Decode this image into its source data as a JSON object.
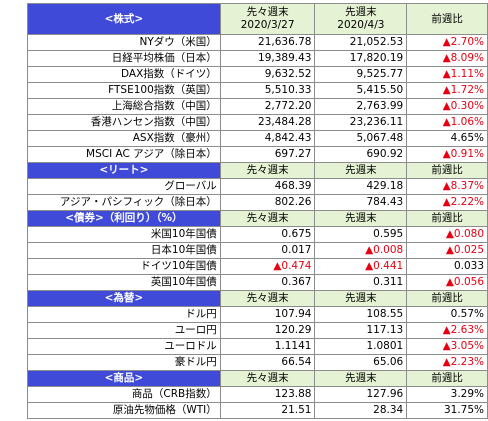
{
  "sections": [
    {
      "label": "<株式>",
      "headers": [
        [
          "先々週末",
          "2020/3/27"
        ],
        [
          "先週末",
          "2020/4/3"
        ],
        [
          "前週比"
        ]
      ],
      "rows": [
        {
          "name": "NYダウ（米国）",
          "prev": "21,636.78",
          "last": "21,052.53",
          "change": "▲2.70%",
          "neg": [
            false,
            false,
            true
          ]
        },
        {
          "name": "日経平均株価（日本）",
          "prev": "19,389.43",
          "last": "17,820.19",
          "change": "▲8.09%",
          "neg": [
            false,
            false,
            true
          ]
        },
        {
          "name": "DAX指数（ドイツ）",
          "prev": "9,632.52",
          "last": "9,525.77",
          "change": "▲1.11%",
          "neg": [
            false,
            false,
            true
          ]
        },
        {
          "name": "FTSE100指数（英国）",
          "prev": "5,510.33",
          "last": "5,415.50",
          "change": "▲1.72%",
          "neg": [
            false,
            false,
            true
          ]
        },
        {
          "name": "上海総合指数（中国）",
          "prev": "2,772.20",
          "last": "2,763.99",
          "change": "▲0.30%",
          "neg": [
            false,
            false,
            true
          ]
        },
        {
          "name": "香港ハンセン指数（中国）",
          "prev": "23,484.28",
          "last": "23,236.11",
          "change": "▲1.06%",
          "neg": [
            false,
            false,
            true
          ]
        },
        {
          "name": "ASX指数（豪州）",
          "prev": "4,842.43",
          "last": "5,067.48",
          "change": "4.65%",
          "neg": [
            false,
            false,
            false
          ]
        },
        {
          "name": "MSCI AC アジア（除日本）",
          "prev": "697.27",
          "last": "690.92",
          "change": "▲0.91%",
          "neg": [
            false,
            false,
            true
          ]
        }
      ]
    },
    {
      "label": "<リート>",
      "headers": [
        [
          "先々週末"
        ],
        [
          "先週末"
        ],
        [
          "前週比"
        ]
      ],
      "rows": [
        {
          "name": "グローバル",
          "prev": "468.39",
          "last": "429.18",
          "change": "▲8.37%",
          "neg": [
            false,
            false,
            true
          ]
        },
        {
          "name": "アジア・パシフィック（除日本）",
          "prev": "802.26",
          "last": "784.43",
          "change": "▲2.22%",
          "neg": [
            false,
            false,
            true
          ]
        }
      ]
    },
    {
      "label": "<債券>（利回り）（%）",
      "headers": [
        [
          "先々週末"
        ],
        [
          "先週末"
        ],
        [
          "前週比"
        ]
      ],
      "rows": [
        {
          "name": "米国10年国債",
          "prev": "0.675",
          "last": "0.595",
          "change": "▲0.080",
          "neg": [
            false,
            false,
            true
          ]
        },
        {
          "name": "日本10年国債",
          "prev": "0.017",
          "last": "▲0.008",
          "change": "▲0.025",
          "neg": [
            false,
            true,
            true
          ]
        },
        {
          "name": "ドイツ10年国債",
          "prev": "▲0.474",
          "last": "▲0.441",
          "change": "0.033",
          "neg": [
            true,
            true,
            false
          ]
        },
        {
          "name": "英国10年国債",
          "prev": "0.367",
          "last": "0.311",
          "change": "▲0.056",
          "neg": [
            false,
            false,
            true
          ]
        }
      ]
    },
    {
      "label": "<為替>",
      "headers": [
        [
          "先々週末"
        ],
        [
          "先週末"
        ],
        [
          "前週比"
        ]
      ],
      "rows": [
        {
          "name": "ドル円",
          "prev": "107.94",
          "last": "108.55",
          "change": "0.57%",
          "neg": [
            false,
            false,
            false
          ]
        },
        {
          "name": "ユーロ円",
          "prev": "120.29",
          "last": "117.13",
          "change": "▲2.63%",
          "neg": [
            false,
            false,
            true
          ]
        },
        {
          "name": "ユーロドル",
          "prev": "1.1141",
          "last": "1.0801",
          "change": "▲3.05%",
          "neg": [
            false,
            false,
            true
          ]
        },
        {
          "name": "豪ドル円",
          "prev": "66.54",
          "last": "65.06",
          "change": "▲2.23%",
          "neg": [
            false,
            false,
            true
          ]
        }
      ]
    },
    {
      "label": "<商品>",
      "headers": [
        [
          "先々週末"
        ],
        [
          "先週末"
        ],
        [
          "前週比"
        ]
      ],
      "rows": [
        {
          "name": "商品（CRB指数）",
          "prev": "123.88",
          "last": "127.96",
          "change": "3.29%",
          "neg": [
            false,
            false,
            false
          ]
        },
        {
          "name": "原油先物価格（WTI）",
          "prev": "21.51",
          "last": "28.34",
          "change": "31.75%",
          "neg": [
            false,
            false,
            false
          ]
        }
      ]
    }
  ],
  "colors": {
    "section_label_bg": "#3f4bd8",
    "header_bg": "#e5f2d3",
    "negative_text": "#e60012",
    "border": "#8c8c8c"
  }
}
